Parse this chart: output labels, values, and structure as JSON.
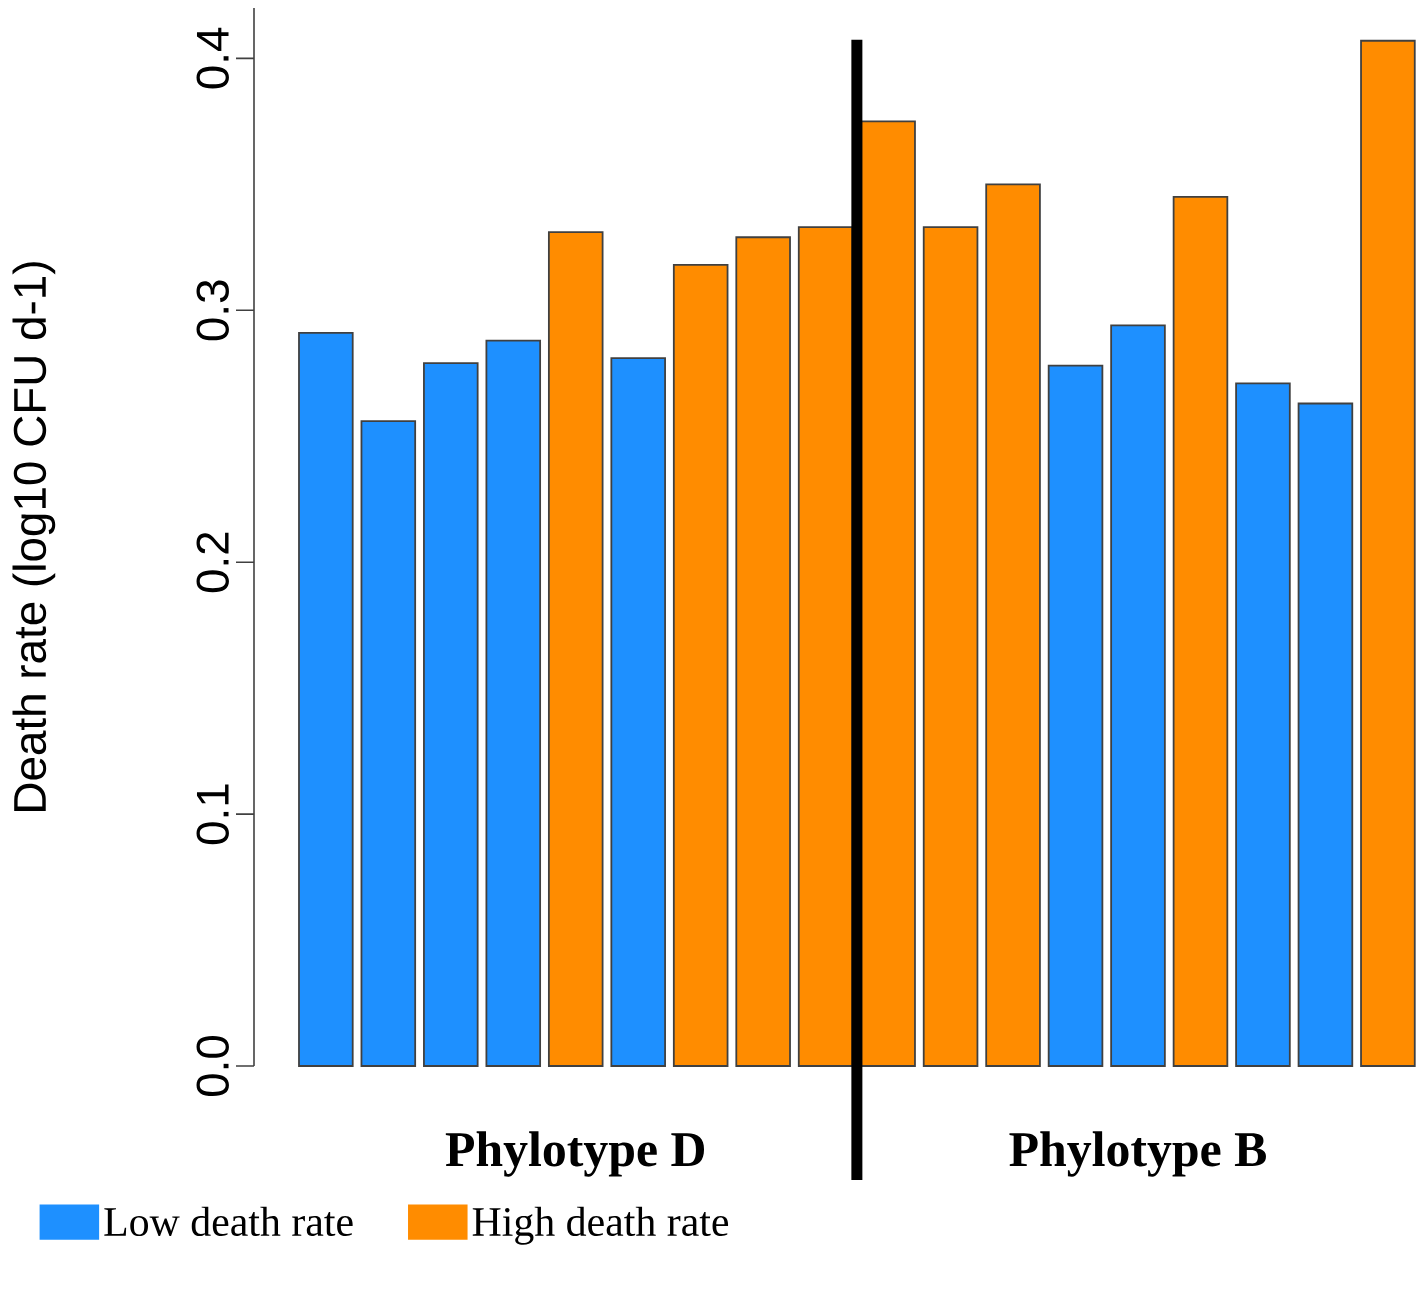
{
  "chart_data": {
    "type": "bar",
    "ylabel": "Death rate (log10 CFU d-1)",
    "categories": [
      null,
      null,
      null,
      null,
      null,
      null,
      null,
      null,
      null,
      null,
      null,
      null,
      null,
      null,
      null,
      null,
      null,
      null
    ],
    "series": [
      {
        "name": "Low death rate",
        "color": "#1e90ff",
        "values": [
          0.291,
          0.256,
          0.279,
          0.288,
          null,
          0.281,
          null,
          null,
          null,
          null,
          null,
          null,
          0.278,
          0.294,
          null,
          0.271,
          0.263,
          null
        ]
      },
      {
        "name": "High death rate",
        "color": "#ff8c00",
        "values": [
          null,
          null,
          null,
          null,
          0.331,
          null,
          0.318,
          0.329,
          0.333,
          0.375,
          0.333,
          0.35,
          null,
          null,
          0.345,
          null,
          null,
          0.407
        ]
      }
    ],
    "stacked": true,
    "ylim": [
      0,
      0.42
    ],
    "yticks": [
      {
        "value": 0,
        "label": "0.0"
      },
      0.1,
      0.2,
      0.3,
      0.4
    ],
    "tick_labels": "y",
    "annotations": [
      "Phylotype D",
      "Phylotype B"
    ],
    "legend": "bottom"
  }
}
